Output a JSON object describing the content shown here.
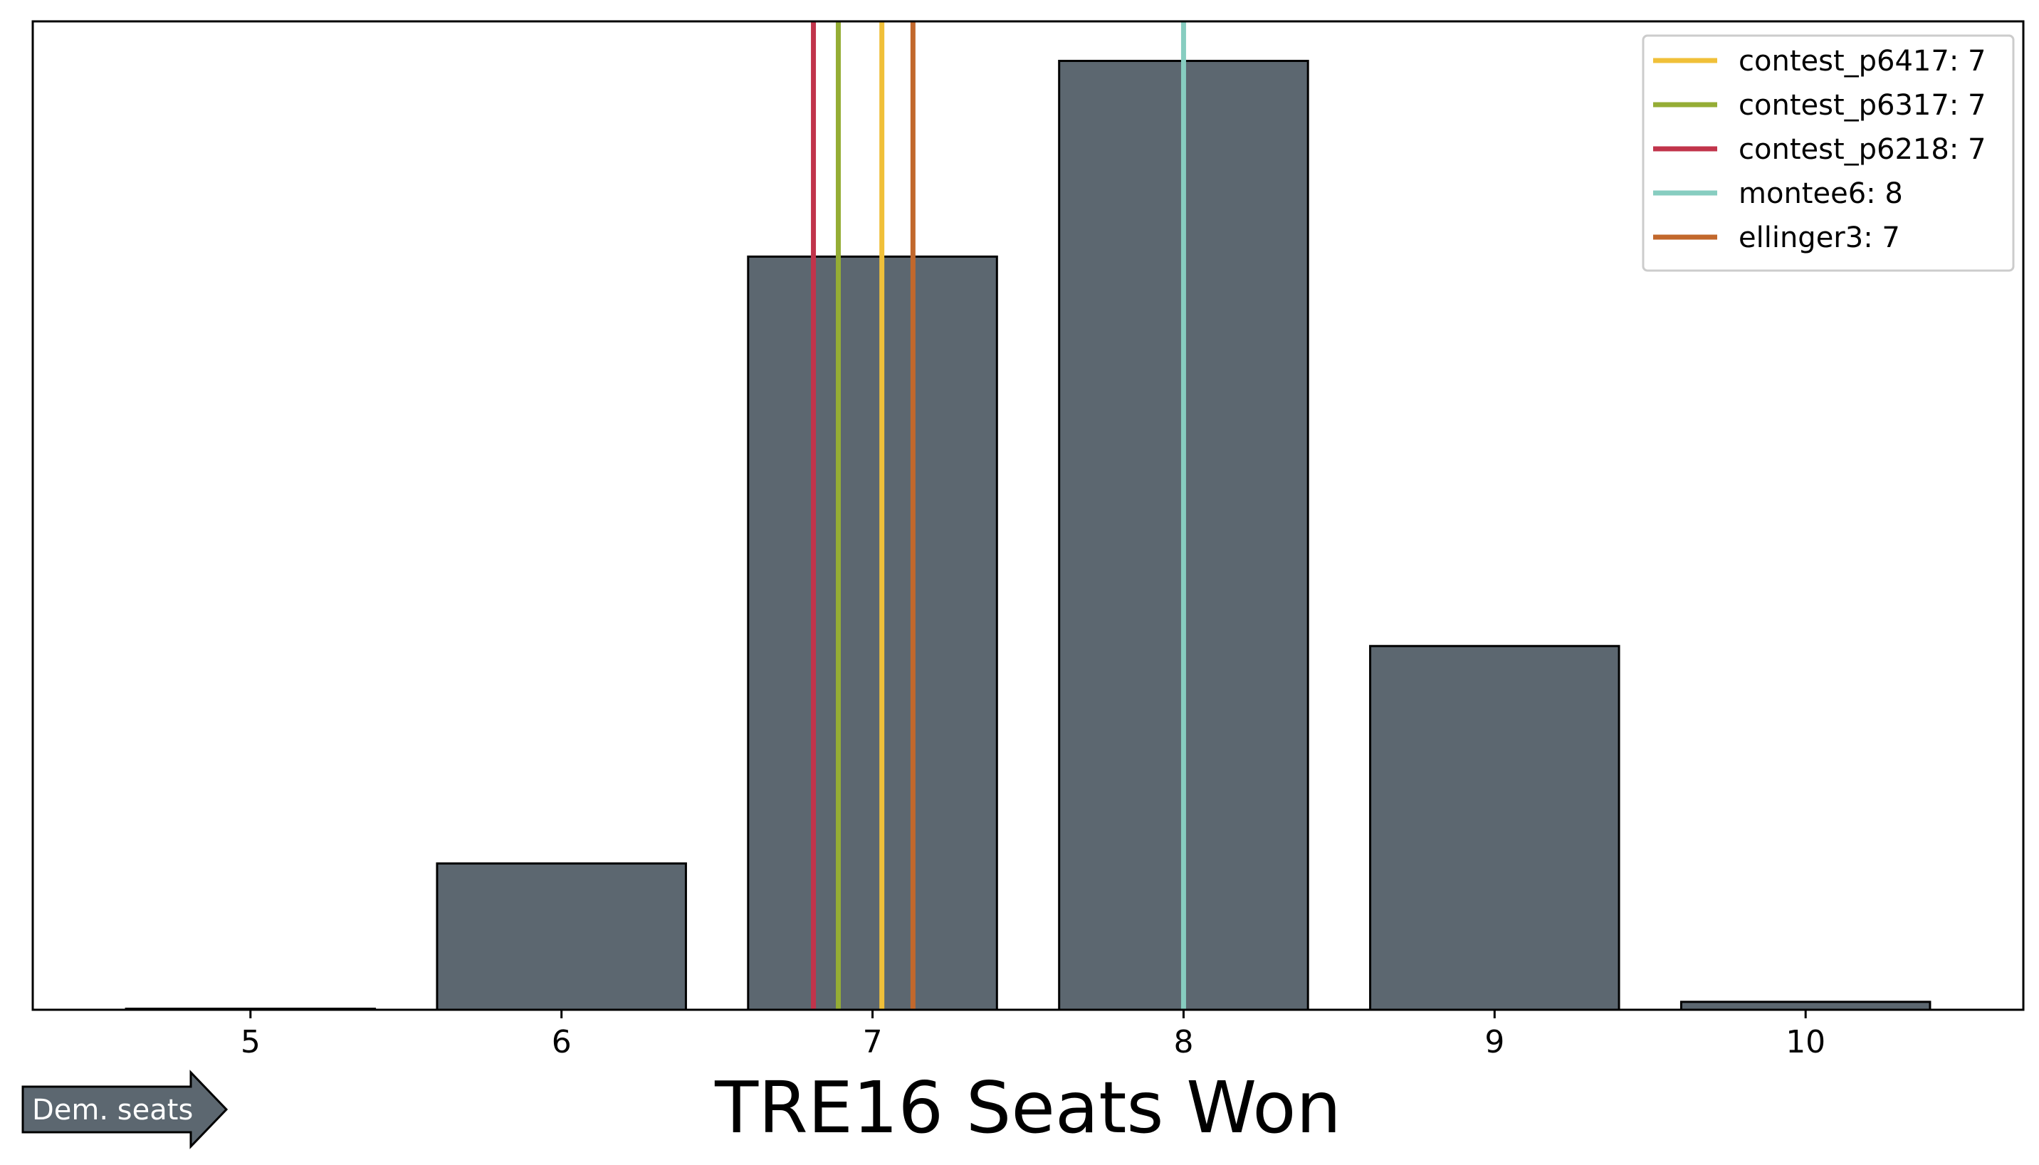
{
  "chart_data": {
    "type": "bar",
    "xlabel": "TRE16 Seats Won",
    "categories": [
      "5",
      "6",
      "7",
      "8",
      "9",
      "10"
    ],
    "x": [
      5,
      6,
      7,
      8,
      9,
      10
    ],
    "values": [
      0.001,
      0.148,
      0.762,
      0.96,
      0.368,
      0.008
    ],
    "xlim": [
      4.3,
      10.7
    ],
    "ylim": [
      0,
      1.0
    ],
    "bar_color": "#5c6770",
    "yticks_visible": false,
    "grid": false,
    "legend_position": "top-right",
    "vlines": [
      {
        "name": "contest_p6417: 7",
        "x": 7.03,
        "color": "#f0c039"
      },
      {
        "name": "contest_p6317: 7",
        "x": 6.89,
        "color": "#95ad35"
      },
      {
        "name": "contest_p6218: 7",
        "x": 6.81,
        "color": "#c1344b"
      },
      {
        "name": "montee6: 8",
        "x": 8.0,
        "color": "#87cdc0"
      },
      {
        "name": "ellinger3: 7",
        "x": 7.13,
        "color": "#c2682c"
      }
    ],
    "annotation": {
      "text": "Dem. seats",
      "shape": "right-arrow",
      "color": "#5c6770"
    }
  }
}
